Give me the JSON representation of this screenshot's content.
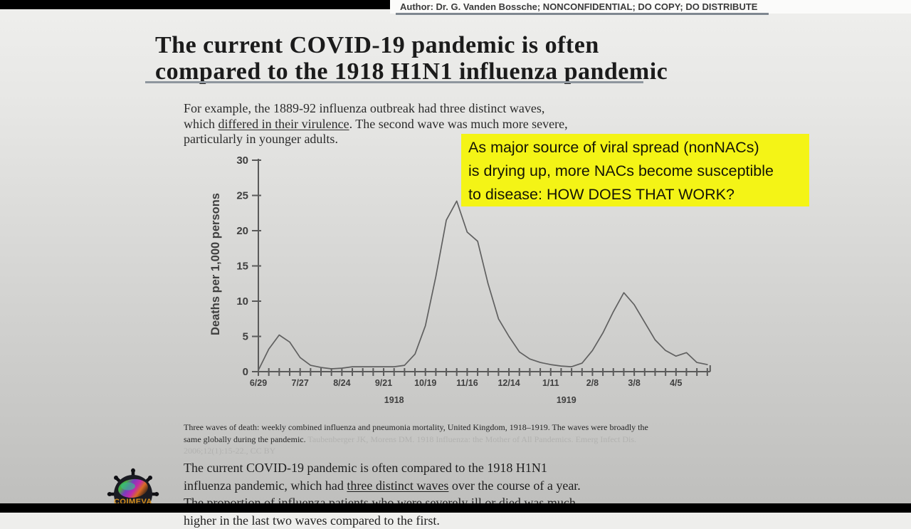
{
  "header": {
    "author_line": "Author: Dr. G. Vanden Bossche; NONCONFIDENTIAL; DO COPY; DO DISTRIBUTE"
  },
  "slide": {
    "title": "The current COVID-19 pandemic is often\ncompared to the 1918 H1N1 influenza pandemic",
    "intro": {
      "part1": "For example, the 1889-92 influenza outbreak had three distinct waves,\nwhich ",
      "underlined": "differed in their virulence",
      "part2": ". The second wave was much more severe,\nparticularly in younger adults."
    },
    "callout": {
      "text": "As major source of viral spread (nonNACs)\nis drying up, more NACs become susceptible\nto disease: HOW DOES THAT WORK?",
      "bg_color": "#f4f416",
      "text_color": "#151506"
    },
    "caption": {
      "main": "Three waves of death: weekly combined influenza and pneumonia mortality, United Kingdom, 1918–1919. The waves were broadly the\nsame globally during the pandemic. ",
      "citation": "Taubenberger JK, Morens DM. 1918 Influenza: the Mother of All Pandemics. Emerg Infect Dis.\n2006;12(1):15-22., CC BY"
    },
    "body": {
      "part1": "The current COVID-19 pandemic is often compared to the 1918 H1N1\ninfluenza pandemic, which had ",
      "underlined": "three distinct waves",
      "part2": " over the course of a year.\nThe proportion of influenza patients who were severely ill or died was much\nhigher in the last two waves compared to the first."
    },
    "logo_text": "COIMEVA"
  },
  "chart_data": {
    "type": "line",
    "title": "",
    "xlabel": "",
    "ylabel": "Deaths per 1,000 persons",
    "ylim": [
      0,
      30
    ],
    "yticks": [
      0,
      5,
      10,
      15,
      20,
      25,
      30
    ],
    "grid": false,
    "legend": "none",
    "line_color": "#606060",
    "axis_color": "#5a5a5a",
    "label_color": "#3f3f3f",
    "x_tick_labels": [
      "6/29",
      "7/27",
      "8/24",
      "9/21",
      "10/19",
      "11/16",
      "12/14",
      "1/11",
      "2/8",
      "3/8",
      "4/5"
    ],
    "x_tick_label_weeks": [
      0,
      4,
      8,
      12,
      16,
      20,
      24,
      28,
      32,
      36,
      40
    ],
    "year_labels": [
      {
        "label": "1918",
        "week": 13
      },
      {
        "label": "1919",
        "week": 29.5
      }
    ],
    "x": [
      "6/29",
      "7/6",
      "7/13",
      "7/20",
      "7/27",
      "8/3",
      "8/10",
      "8/17",
      "8/24",
      "8/31",
      "9/7",
      "9/14",
      "9/21",
      "9/28",
      "10/5",
      "10/12",
      "10/19",
      "10/26",
      "11/2",
      "11/9",
      "11/16",
      "11/23",
      "11/30",
      "12/7",
      "12/14",
      "12/21",
      "12/28",
      "1/4",
      "1/11",
      "1/18",
      "1/25",
      "2/1",
      "2/8",
      "2/15",
      "2/22",
      "3/1",
      "3/8",
      "3/15",
      "3/22",
      "3/29",
      "4/5",
      "4/12",
      "4/19",
      "4/26"
    ],
    "values": [
      0.2,
      3.2,
      5.2,
      4.2,
      2.0,
      0.9,
      0.6,
      0.4,
      0.5,
      0.7,
      0.7,
      0.7,
      0.7,
      0.7,
      0.9,
      2.5,
      6.5,
      13.5,
      21.5,
      24.2,
      19.8,
      18.5,
      12.5,
      7.5,
      5.0,
      2.8,
      1.8,
      1.3,
      1.0,
      0.8,
      0.7,
      1.2,
      3.0,
      5.5,
      8.5,
      11.2,
      9.5,
      7.0,
      4.5,
      3.0,
      2.2,
      2.7,
      1.3,
      1.0
    ]
  }
}
